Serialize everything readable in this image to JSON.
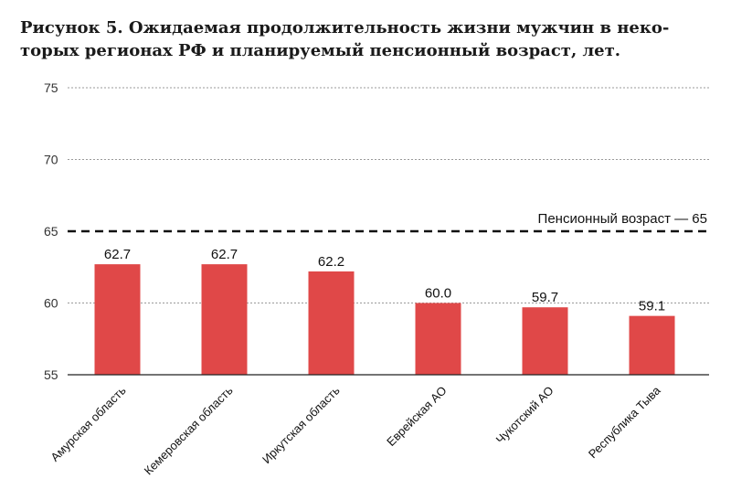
{
  "chart_data": {
    "type": "bar",
    "title_lines": [
      "Рисунок 5. Ожидаемая продолжительность жизни мужчин в неко-",
      "торых регионах РФ и планируемый пенсионный возраст, лет."
    ],
    "categories": [
      "Амурская область",
      "Кемеровская область",
      "Иркутская область",
      "Еврейская АО",
      "Чукотский АО",
      "Республика Тыва"
    ],
    "values": [
      62.7,
      62.7,
      62.2,
      60.0,
      59.7,
      59.1
    ],
    "value_labels": [
      "62.7",
      "62.7",
      "62.2",
      "60.0",
      "59.7",
      "59.1"
    ],
    "xlabel": "",
    "ylabel": "",
    "ylim": [
      55,
      75
    ],
    "yticks": [
      55,
      60,
      65,
      70,
      75
    ],
    "ytick_labels": [
      "55",
      "60",
      "65",
      "70",
      "75"
    ],
    "grid": true,
    "bar_color": "#e04848",
    "reference_line": {
      "value": 65,
      "label": "Пенсионный возраст — 65",
      "style": "dashed"
    }
  }
}
